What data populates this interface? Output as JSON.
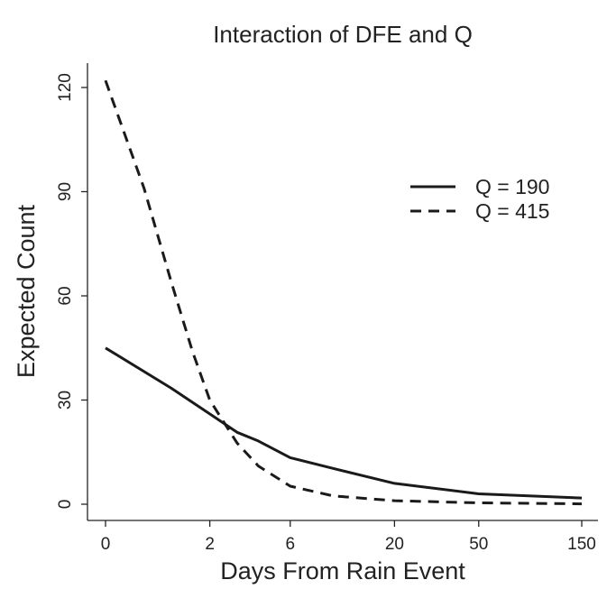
{
  "chart_data": {
    "type": "line",
    "title": "Interaction of DFE and Q",
    "xlabel": "Days From Rain Event",
    "ylabel": "Expected Count",
    "x_ticks": [
      "0",
      "2",
      "6",
      "20",
      "50",
      "150"
    ],
    "y_ticks": [
      0,
      30,
      60,
      90,
      120
    ],
    "ylim": [
      0,
      125
    ],
    "grid": false,
    "legend_position": "top-right",
    "series": [
      {
        "name": "Q = 190",
        "line_style": "solid",
        "x": [
          0,
          1,
          2,
          3,
          4,
          6,
          10,
          20,
          50,
          150
        ],
        "y": [
          45,
          33.4,
          26,
          20.7,
          18.2,
          13.4,
          10.3,
          6,
          3,
          1.8
        ]
      },
      {
        "name": "Q = 415",
        "line_style": "dashed",
        "x": [
          0,
          0.5,
          1,
          1.5,
          2,
          3,
          4,
          6,
          10,
          20,
          50,
          150
        ],
        "y": [
          122,
          91,
          64,
          44,
          30,
          17.6,
          11,
          5.2,
          2.4,
          1,
          0.4,
          0.1
        ]
      }
    ]
  }
}
